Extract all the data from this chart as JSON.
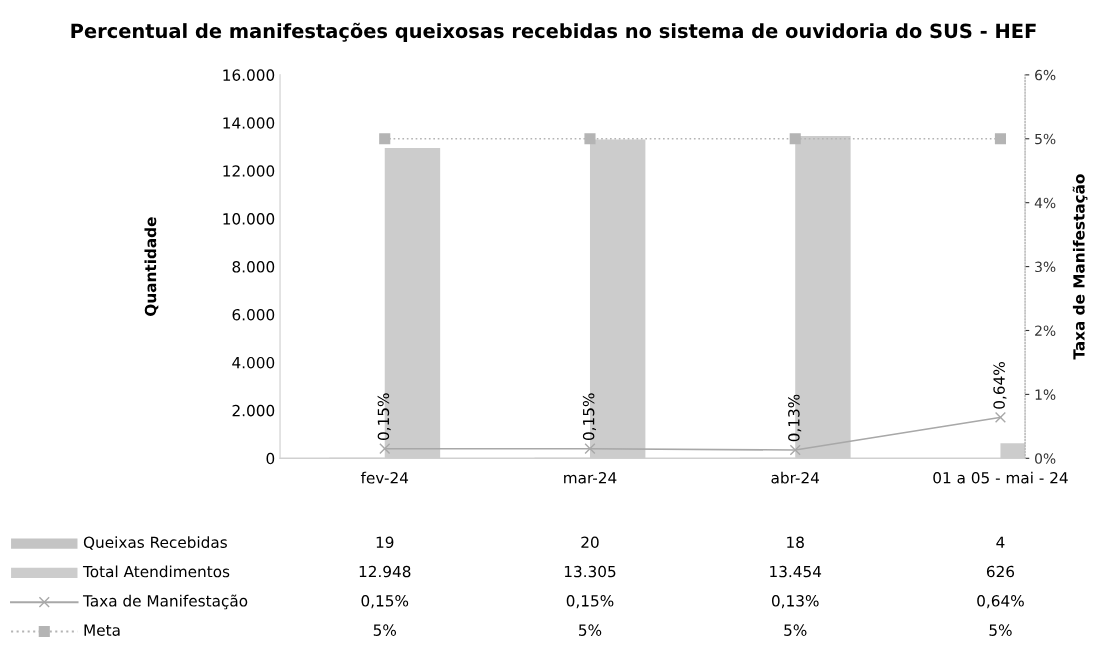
{
  "chart_data": {
    "type": "bar",
    "title": "Percentual de manifestações queixosas recebidas no sistema de ouvidoria do SUS - HEF",
    "ylabel": "Quantidade",
    "y2label": "Taxa de Manifestação",
    "categories": [
      "fev-24",
      "mar-24",
      "abr-24",
      "01 a 05 - mai - 24"
    ],
    "series": [
      {
        "name": "Queixas Recebidas",
        "color": "#c4c4c4",
        "values": [
          19,
          20,
          18,
          4
        ],
        "value_labels": [
          "19",
          "20",
          "18",
          "4"
        ]
      },
      {
        "name": "Total Atendimentos",
        "color": "#cccccc",
        "values": [
          12948,
          13305,
          13454,
          626
        ],
        "value_labels": [
          "12.948",
          "13.305",
          "13.454",
          "626"
        ]
      },
      {
        "name": "Taxa de Manifestação",
        "type": "line",
        "axis": "y2",
        "color": "#a8a8a8",
        "marker": "cross",
        "line_style": "solid",
        "values": [
          0.15,
          0.15,
          0.13,
          0.64
        ],
        "value_labels": [
          "0,15%",
          "0,15%",
          "0,13%",
          "0,64%"
        ]
      },
      {
        "name": "Meta",
        "type": "line",
        "axis": "y2",
        "color": "#b4b4b4",
        "marker": "square",
        "line_style": "dotted",
        "values": [
          5,
          5,
          5,
          5
        ],
        "value_labels": [
          "5%",
          "5%",
          "5%",
          "5%"
        ]
      }
    ],
    "ylim": [
      0,
      16000
    ],
    "yticks": [
      {
        "value": 0,
        "label": "0"
      },
      {
        "value": 2000,
        "label": "2.000"
      },
      {
        "value": 4000,
        "label": "4.000"
      },
      {
        "value": 6000,
        "label": "6.000"
      },
      {
        "value": 8000,
        "label": "8.000"
      },
      {
        "value": 10000,
        "label": "10.000"
      },
      {
        "value": 12000,
        "label": "12.000"
      },
      {
        "value": 14000,
        "label": "14.000"
      },
      {
        "value": 16000,
        "label": "16.000"
      }
    ],
    "y2lim": [
      0,
      6
    ],
    "y2ticks": [
      {
        "value": 0,
        "label": "0%"
      },
      {
        "value": 1,
        "label": "1%"
      },
      {
        "value": 2,
        "label": "2%"
      },
      {
        "value": 3,
        "label": "3%"
      },
      {
        "value": 4,
        "label": "4%"
      },
      {
        "value": 5,
        "label": "5%"
      },
      {
        "value": 6,
        "label": "6%"
      }
    ],
    "grid": false,
    "legend": "bottom"
  }
}
